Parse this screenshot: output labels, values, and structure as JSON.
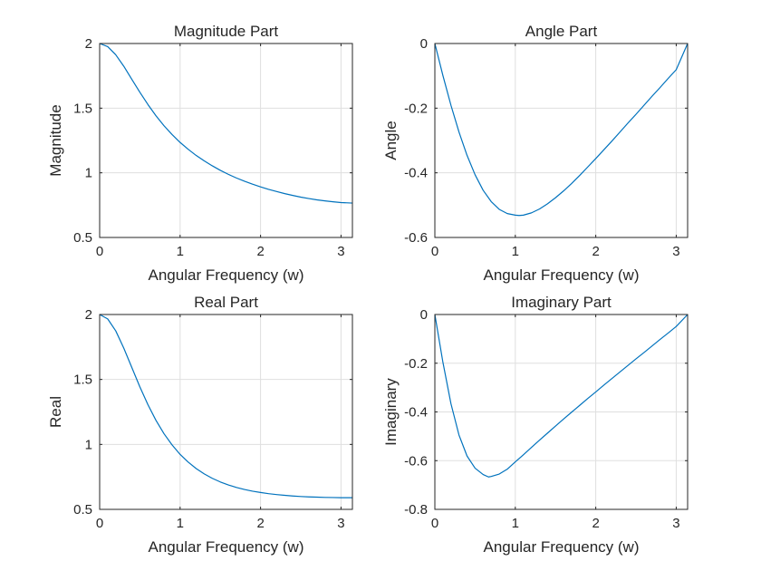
{
  "chart_data": [
    {
      "type": "line",
      "title": "Magnitude Part",
      "xlabel": "Angular Frequency (w)",
      "ylabel": "Magnitude",
      "xlim": [
        0,
        3.14159
      ],
      "ylim": [
        0.5,
        2
      ],
      "xticks": [
        "0",
        "1",
        "2",
        "3"
      ],
      "yticks": [
        "0.5",
        "1",
        "1.5",
        "2"
      ],
      "grid": true,
      "series": [
        {
          "color": "#0072BD",
          "x": [
            0,
            0.1,
            0.2,
            0.3,
            0.4,
            0.5,
            0.6,
            0.7,
            0.8,
            0.9,
            1.0,
            1.1,
            1.2,
            1.3,
            1.4,
            1.5,
            1.6,
            1.7,
            1.8,
            1.9,
            2.0,
            2.1,
            2.2,
            2.3,
            2.4,
            2.5,
            2.6,
            2.7,
            2.8,
            2.9,
            3.0,
            3.1416
          ],
          "y": [
            2.0,
            1.976,
            1.913,
            1.824,
            1.723,
            1.623,
            1.528,
            1.441,
            1.364,
            1.296,
            1.235,
            1.182,
            1.134,
            1.092,
            1.054,
            1.019,
            0.988,
            0.96,
            0.935,
            0.912,
            0.891,
            0.872,
            0.855,
            0.839,
            0.825,
            0.812,
            0.801,
            0.791,
            0.783,
            0.776,
            0.77,
            0.766
          ]
        }
      ]
    },
    {
      "type": "line",
      "title": "Angle Part",
      "xlabel": "Angular Frequency (w)",
      "ylabel": "Angle",
      "xlim": [
        0,
        3.14159
      ],
      "ylim": [
        -0.6,
        0
      ],
      "xticks": [
        "0",
        "1",
        "2",
        "3"
      ],
      "yticks": [
        "-0.6",
        "-0.4",
        "-0.2",
        "0"
      ],
      "grid": true,
      "series": [
        {
          "color": "#0072BD",
          "x": [
            0,
            0.1,
            0.2,
            0.3,
            0.4,
            0.5,
            0.6,
            0.7,
            0.8,
            0.9,
            1.0,
            1.047,
            1.1,
            1.2,
            1.3,
            1.4,
            1.5,
            1.6,
            1.7,
            1.8,
            1.9,
            2.0,
            2.1,
            2.2,
            2.3,
            2.4,
            2.5,
            2.6,
            2.7,
            2.8,
            2.9,
            3.0,
            3.1416
          ],
          "y": [
            0,
            -0.099,
            -0.191,
            -0.274,
            -0.346,
            -0.406,
            -0.454,
            -0.489,
            -0.513,
            -0.526,
            -0.531,
            -0.532,
            -0.531,
            -0.524,
            -0.512,
            -0.496,
            -0.477,
            -0.456,
            -0.433,
            -0.408,
            -0.382,
            -0.356,
            -0.329,
            -0.302,
            -0.274,
            -0.246,
            -0.219,
            -0.191,
            -0.163,
            -0.136,
            -0.108,
            -0.081,
            0
          ]
        }
      ]
    },
    {
      "type": "line",
      "title": "Real Part",
      "xlabel": "Angular Frequency (w)",
      "ylabel": "Real",
      "xlim": [
        0,
        3.14159
      ],
      "ylim": [
        0.5,
        2
      ],
      "xticks": [
        "0",
        "1",
        "2",
        "3"
      ],
      "yticks": [
        "0.5",
        "1",
        "1.5",
        "2"
      ],
      "grid": true,
      "series": [
        {
          "color": "#0072BD",
          "x": [
            0,
            0.1,
            0.2,
            0.3,
            0.4,
            0.5,
            0.6,
            0.7,
            0.8,
            0.9,
            1.0,
            1.1,
            1.2,
            1.3,
            1.4,
            1.5,
            1.6,
            1.7,
            1.8,
            1.9,
            2.0,
            2.1,
            2.2,
            2.3,
            2.4,
            2.5,
            2.6,
            2.7,
            2.8,
            2.9,
            3.0,
            3.1416
          ],
          "y": [
            2.0,
            1.966,
            1.874,
            1.741,
            1.592,
            1.443,
            1.306,
            1.185,
            1.082,
            0.996,
            0.923,
            0.864,
            0.814,
            0.773,
            0.739,
            0.711,
            0.688,
            0.669,
            0.653,
            0.64,
            0.63,
            0.621,
            0.614,
            0.608,
            0.603,
            0.599,
            0.596,
            0.594,
            0.592,
            0.591,
            0.59,
            0.59
          ]
        }
      ]
    },
    {
      "type": "line",
      "title": "Imaginary Part",
      "xlabel": "Angular Frequency (w)",
      "ylabel": "Imaginary",
      "xlim": [
        0,
        3.14159
      ],
      "ylim": [
        -0.8,
        0
      ],
      "xticks": [
        "0",
        "1",
        "2",
        "3"
      ],
      "yticks": [
        "-0.8",
        "-0.6",
        "-0.4",
        "-0.2",
        "0"
      ],
      "grid": true,
      "series": [
        {
          "color": "#0072BD",
          "x": [
            0,
            0.1,
            0.2,
            0.3,
            0.4,
            0.5,
            0.6,
            0.667,
            0.7,
            0.8,
            0.9,
            1.0,
            1.1,
            1.2,
            1.3,
            1.4,
            1.5,
            1.6,
            1.7,
            1.8,
            1.9,
            2.0,
            2.1,
            2.2,
            2.3,
            2.4,
            2.5,
            2.6,
            2.7,
            2.8,
            2.9,
            3.0,
            3.1416
          ],
          "y": [
            0,
            -0.196,
            -0.366,
            -0.495,
            -0.581,
            -0.631,
            -0.657,
            -0.667,
            -0.665,
            -0.655,
            -0.635,
            -0.605,
            -0.576,
            -0.546,
            -0.516,
            -0.487,
            -0.458,
            -0.429,
            -0.401,
            -0.373,
            -0.345,
            -0.318,
            -0.29,
            -0.263,
            -0.236,
            -0.209,
            -0.182,
            -0.156,
            -0.129,
            -0.102,
            -0.076,
            -0.049,
            0
          ]
        }
      ]
    }
  ]
}
